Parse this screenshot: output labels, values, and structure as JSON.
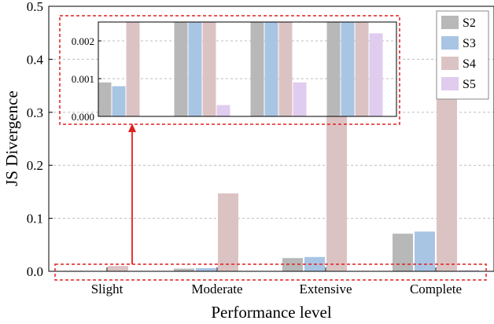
{
  "chart_data": {
    "type": "bar",
    "xlabel": "Performance level",
    "ylabel": "JS Divergence",
    "ylim": [
      0,
      0.5
    ],
    "yticks": [
      "0.0",
      "0.1",
      "0.2",
      "0.3",
      "0.4",
      "0.5"
    ],
    "grid": "horizontal dashed",
    "legend_position": "top-right",
    "categories": [
      "Slight",
      "Moderate",
      "Extensive",
      "Complete"
    ],
    "series": [
      {
        "name": "S2",
        "color": "#b8b8b8",
        "values": [
          0.0009,
          0.005,
          0.025,
          0.071
        ]
      },
      {
        "name": "S3",
        "color": "#a9c5e4",
        "values": [
          0.0008,
          0.006,
          0.027,
          0.075
        ]
      },
      {
        "name": "S4",
        "color": "#dcc3c3",
        "values": [
          0.01,
          0.147,
          0.293,
          0.35
        ]
      },
      {
        "name": "S5",
        "color": "#e0ccee",
        "values": [
          0.0,
          0.0003,
          0.0009,
          0.0022
        ]
      }
    ],
    "inset": {
      "ylim": [
        0,
        0.0025
      ],
      "yticks": [
        "0.000",
        "0.001",
        "0.002"
      ]
    }
  }
}
